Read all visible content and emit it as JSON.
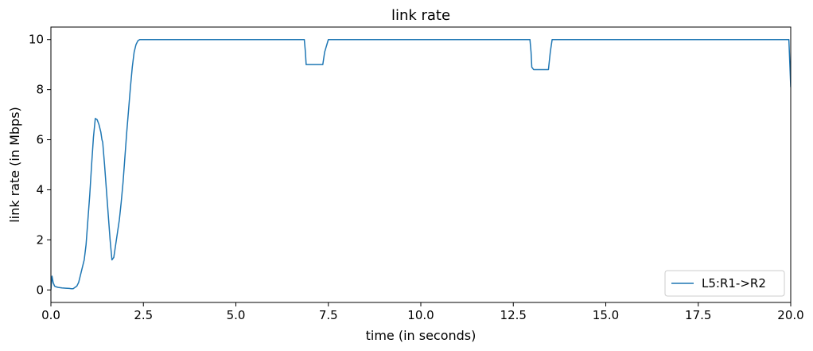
{
  "chart_data": {
    "type": "line",
    "title": "link rate",
    "xlabel": "time (in seconds)",
    "ylabel": "link rate (in Mbps)",
    "xlim": [
      0,
      20
    ],
    "ylim": [
      -0.5,
      10.5
    ],
    "xticks": [
      0,
      2.5,
      5,
      7.5,
      10,
      12.5,
      15,
      17.5,
      20
    ],
    "xtick_labels": [
      "0.0",
      "2.5",
      "5.0",
      "7.5",
      "10.0",
      "12.5",
      "15.0",
      "17.5",
      "20.0"
    ],
    "yticks": [
      0,
      2,
      4,
      6,
      8,
      10
    ],
    "ytick_labels": [
      "0",
      "2",
      "4",
      "6",
      "8",
      "10"
    ],
    "grid": false,
    "legend_position": "bottom-right",
    "series": [
      {
        "name": "L5:R1->R2",
        "color": "#1f77b4",
        "x": [
          0.0,
          0.03,
          0.06,
          0.1,
          0.15,
          0.2,
          0.3,
          0.4,
          0.5,
          0.55,
          0.6,
          0.65,
          0.7,
          0.75,
          0.8,
          0.85,
          0.9,
          0.95,
          1.0,
          1.05,
          1.1,
          1.15,
          1.2,
          1.25,
          1.3,
          1.35,
          1.38,
          1.4,
          1.45,
          1.5,
          1.55,
          1.6,
          1.65,
          1.7,
          1.75,
          1.8,
          1.85,
          1.9,
          1.95,
          2.0,
          2.05,
          2.1,
          2.15,
          2.2,
          2.25,
          2.3,
          2.35,
          2.4,
          2.45,
          2.5,
          2.55,
          2.6,
          3.0,
          4.0,
          5.0,
          6.0,
          6.85,
          6.88,
          6.9,
          7.0,
          7.2,
          7.35,
          7.4,
          7.5,
          8.0,
          9.0,
          10.0,
          11.0,
          12.0,
          12.95,
          12.98,
          13.0,
          13.05,
          13.2,
          13.45,
          13.5,
          13.55,
          14.0,
          15.0,
          16.0,
          17.0,
          18.0,
          19.0,
          19.95,
          20.0
        ],
        "y": [
          0.0,
          0.55,
          0.3,
          0.15,
          0.12,
          0.1,
          0.08,
          0.07,
          0.06,
          0.05,
          0.05,
          0.1,
          0.15,
          0.3,
          0.6,
          0.9,
          1.2,
          1.8,
          2.8,
          3.8,
          5.0,
          6.1,
          6.85,
          6.8,
          6.6,
          6.3,
          6.0,
          5.9,
          5.0,
          4.0,
          3.0,
          2.0,
          1.2,
          1.3,
          1.8,
          2.3,
          2.8,
          3.5,
          4.3,
          5.3,
          6.3,
          7.2,
          8.1,
          8.9,
          9.5,
          9.8,
          9.95,
          10.0,
          10.0,
          10.0,
          10.0,
          10.0,
          10.0,
          10.0,
          10.0,
          10.0,
          10.0,
          9.5,
          9.0,
          9.0,
          9.0,
          9.0,
          9.5,
          10.0,
          10.0,
          10.0,
          10.0,
          10.0,
          10.0,
          10.0,
          9.5,
          8.9,
          8.8,
          8.8,
          8.8,
          9.5,
          10.0,
          10.0,
          10.0,
          10.0,
          10.0,
          10.0,
          10.0,
          10.0,
          8.1
        ]
      }
    ]
  }
}
